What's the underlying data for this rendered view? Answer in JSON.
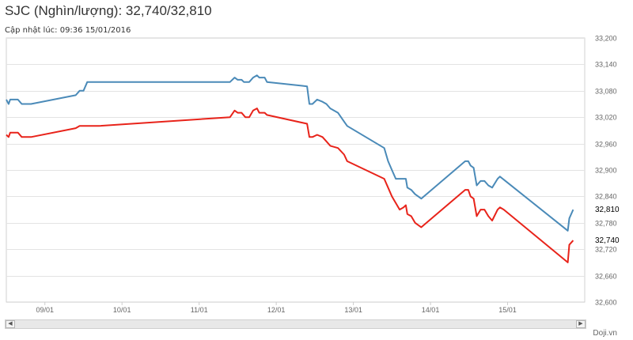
{
  "header": {
    "title": "SJC (Nghìn/lượng): 32,740/32,810",
    "updated": "Cập nhật lúc: 09:36 15/01/2016"
  },
  "watermark": "Doji.vn",
  "chart_data": {
    "type": "line",
    "title": "SJC (Nghìn/lượng): 32,740/32,810",
    "xlabel": "",
    "ylabel": "",
    "ylim": [
      32600,
      33200
    ],
    "xlim": [
      0,
      7.5
    ],
    "grid": true,
    "y_ticks": [
      "32,600",
      "32,660",
      "32,720",
      "32,780",
      "32,840",
      "32,900",
      "32,960",
      "33,020",
      "33,080",
      "33,140",
      "33,200"
    ],
    "x_ticks": [
      {
        "x": 0.5,
        "label": "09/01"
      },
      {
        "x": 1.5,
        "label": "10/01"
      },
      {
        "x": 2.5,
        "label": "11/01"
      },
      {
        "x": 3.5,
        "label": "12/01"
      },
      {
        "x": 4.5,
        "label": "13/01"
      },
      {
        "x": 5.5,
        "label": "14/01"
      },
      {
        "x": 6.5,
        "label": "15/01"
      }
    ],
    "last_labels": {
      "sell": "32,810",
      "buy": "32,740"
    },
    "colors": {
      "sell": "#4a8ab8",
      "buy": "#e8231a"
    },
    "series": [
      {
        "key": "sell",
        "points": [
          [
            0,
            33060
          ],
          [
            0.03,
            33050
          ],
          [
            0.05,
            33060
          ],
          [
            0.15,
            33060
          ],
          [
            0.2,
            33050
          ],
          [
            0.32,
            33050
          ],
          [
            0.9,
            33070
          ],
          [
            0.95,
            33080
          ],
          [
            1.0,
            33080
          ],
          [
            1.05,
            33100
          ],
          [
            2.9,
            33100
          ],
          [
            2.96,
            33110
          ],
          [
            3.0,
            33105
          ],
          [
            3.05,
            33105
          ],
          [
            3.08,
            33100
          ],
          [
            3.15,
            33100
          ],
          [
            3.2,
            33110
          ],
          [
            3.25,
            33115
          ],
          [
            3.28,
            33110
          ],
          [
            3.35,
            33110
          ],
          [
            3.38,
            33100
          ],
          [
            3.9,
            33090
          ],
          [
            3.93,
            33050
          ],
          [
            3.97,
            33050
          ],
          [
            4.03,
            33060
          ],
          [
            4.1,
            33055
          ],
          [
            4.15,
            33050
          ],
          [
            4.2,
            33040
          ],
          [
            4.3,
            33030
          ],
          [
            4.38,
            33010
          ],
          [
            4.42,
            33000
          ],
          [
            4.9,
            32950
          ],
          [
            4.95,
            32920
          ],
          [
            5.0,
            32900
          ],
          [
            5.05,
            32880
          ],
          [
            5.15,
            32880
          ],
          [
            5.18,
            32880
          ],
          [
            5.2,
            32860
          ],
          [
            5.25,
            32855
          ],
          [
            5.3,
            32845
          ],
          [
            5.38,
            32835
          ],
          [
            5.95,
            32920
          ],
          [
            5.99,
            32920
          ],
          [
            6.02,
            32910
          ],
          [
            6.06,
            32905
          ],
          [
            6.1,
            32865
          ],
          [
            6.15,
            32875
          ],
          [
            6.2,
            32875
          ],
          [
            6.25,
            32865
          ],
          [
            6.3,
            32860
          ],
          [
            6.37,
            32880
          ],
          [
            6.4,
            32885
          ],
          [
            6.45,
            32878
          ],
          [
            7.28,
            32762
          ],
          [
            7.3,
            32790
          ],
          [
            7.35,
            32810
          ]
        ]
      },
      {
        "key": "buy",
        "points": [
          [
            0,
            32980
          ],
          [
            0.03,
            32975
          ],
          [
            0.05,
            32985
          ],
          [
            0.15,
            32985
          ],
          [
            0.2,
            32975
          ],
          [
            0.32,
            32975
          ],
          [
            0.9,
            32995
          ],
          [
            0.95,
            33000
          ],
          [
            1.2,
            33000
          ],
          [
            2.9,
            33020
          ],
          [
            2.96,
            33035
          ],
          [
            3.0,
            33030
          ],
          [
            3.05,
            33030
          ],
          [
            3.1,
            33020
          ],
          [
            3.15,
            33020
          ],
          [
            3.2,
            33035
          ],
          [
            3.25,
            33040
          ],
          [
            3.28,
            33030
          ],
          [
            3.35,
            33030
          ],
          [
            3.38,
            33025
          ],
          [
            3.9,
            33005
          ],
          [
            3.93,
            32975
          ],
          [
            3.97,
            32975
          ],
          [
            4.03,
            32980
          ],
          [
            4.1,
            32975
          ],
          [
            4.15,
            32965
          ],
          [
            4.2,
            32955
          ],
          [
            4.3,
            32950
          ],
          [
            4.38,
            32935
          ],
          [
            4.42,
            32920
          ],
          [
            4.9,
            32880
          ],
          [
            4.95,
            32860
          ],
          [
            5.0,
            32840
          ],
          [
            5.05,
            32825
          ],
          [
            5.1,
            32810
          ],
          [
            5.15,
            32815
          ],
          [
            5.18,
            32820
          ],
          [
            5.2,
            32800
          ],
          [
            5.25,
            32795
          ],
          [
            5.3,
            32780
          ],
          [
            5.38,
            32770
          ],
          [
            5.95,
            32855
          ],
          [
            5.99,
            32855
          ],
          [
            6.02,
            32840
          ],
          [
            6.06,
            32835
          ],
          [
            6.1,
            32795
          ],
          [
            6.15,
            32810
          ],
          [
            6.2,
            32810
          ],
          [
            6.25,
            32795
          ],
          [
            6.3,
            32785
          ],
          [
            6.37,
            32810
          ],
          [
            6.4,
            32815
          ],
          [
            6.45,
            32810
          ],
          [
            7.28,
            32690
          ],
          [
            7.3,
            32730
          ],
          [
            7.35,
            32740
          ]
        ]
      }
    ]
  }
}
